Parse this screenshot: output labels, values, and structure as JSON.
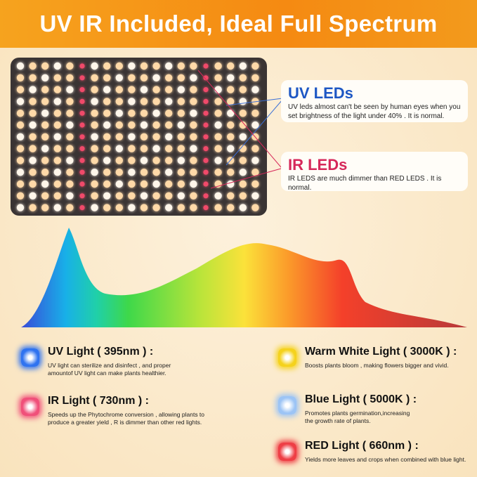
{
  "header": {
    "title": "UV IR Included, Ideal Full Spectrum"
  },
  "callouts": {
    "uv": {
      "title": "UV LEDs",
      "text": "UV leds almost can't be seen by human eyes when you set brightness of the light under 40% . It is normal.",
      "color": "#1d57c4"
    },
    "ir": {
      "title": "IR LEDs",
      "text": "IR LEDS are much dimmer than RED LEDS . It is normal.",
      "color": "#d6285a"
    }
  },
  "legend": [
    {
      "title": "UV Light ( 395nm ) :",
      "text": "UV light can sterilize and disinfect , and proper amountof UV light can make plants healthier.",
      "color": "#2f73f0",
      "icon": "uv-led-icon"
    },
    {
      "title": "IR Light ( 730nm ) :",
      "text": "Speeds up the Phytochrome conversion , allowing plants to produce a greater yield , R is dimmer than other red lights.",
      "color": "#f0507a",
      "icon": "ir-led-icon"
    },
    {
      "title": "Warm White Light ( 3000K ) :",
      "text": "Boosts plants bloom , making flowers bigger and vivid.",
      "color": "#f5d21c",
      "icon": "warm-white-led-icon"
    },
    {
      "title": "Blue Light ( 5000K ) :",
      "text": "Promotes plants germination,increasing the growth rate of plants.",
      "color": "#9cc4f5",
      "icon": "blue-led-icon"
    },
    {
      "title": "RED Light ( 660nm ) :",
      "text": "Yields more leaves and crops when combined with blue light.",
      "color": "#ee3e45",
      "icon": "red-led-icon"
    }
  ]
}
